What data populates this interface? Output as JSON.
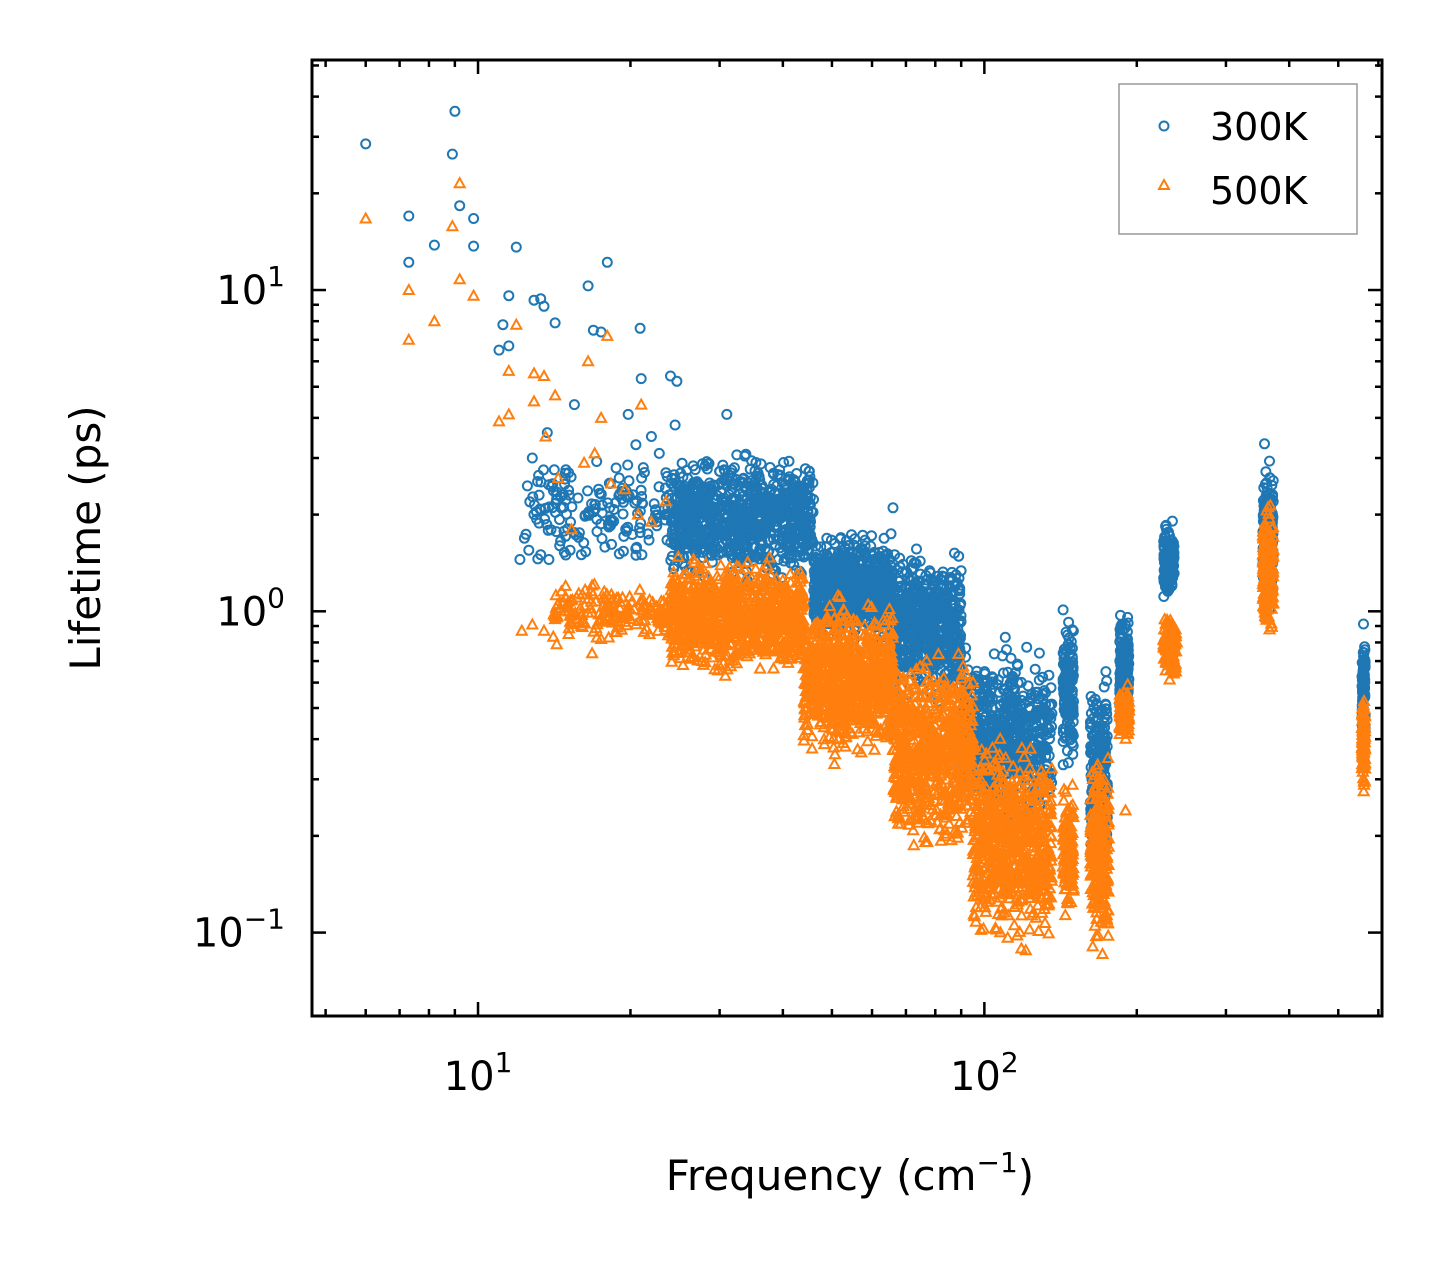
{
  "chart_data": {
    "type": "scatter",
    "title": "",
    "xlabel": "Frequency (cm",
    "xlabel_sup": "−1",
    "xlabel_close": ")",
    "ylabel": "Lifetime (ps)",
    "xscale": "log",
    "yscale": "log",
    "xlim": [
      4.7,
      610
    ],
    "ylim": [
      0.055,
      52
    ],
    "x_ticks": [
      {
        "value": 10,
        "base": "10",
        "exp": "1"
      },
      {
        "value": 100,
        "base": "10",
        "exp": "2"
      }
    ],
    "y_ticks": [
      {
        "value": 0.1,
        "base": "10",
        "exp": "−1"
      },
      {
        "value": 1,
        "base": "10",
        "exp": "0"
      },
      {
        "value": 10,
        "base": "10",
        "exp": "1"
      }
    ],
    "legend_position": "top-right",
    "series": [
      {
        "name": "300K",
        "marker": "circle",
        "color": "#1f77b4",
        "points": [
          [
            6.0,
            28.5
          ],
          [
            7.3,
            17.0
          ],
          [
            7.3,
            12.2
          ],
          [
            8.2,
            13.8
          ],
          [
            8.9,
            26.5
          ],
          [
            9.0,
            36.0
          ],
          [
            9.2,
            18.3
          ],
          [
            9.8,
            16.7
          ],
          [
            9.8,
            13.7
          ],
          [
            11.0,
            6.5
          ],
          [
            11.2,
            7.8
          ],
          [
            11.5,
            6.7
          ],
          [
            11.5,
            9.6
          ],
          [
            11.9,
            13.6
          ],
          [
            12.9,
            9.3
          ],
          [
            13.3,
            9.4
          ],
          [
            13.5,
            8.9
          ],
          [
            14.2,
            7.9
          ],
          [
            15.5,
            4.4
          ],
          [
            16.5,
            10.3
          ],
          [
            16.9,
            7.5
          ],
          [
            17.5,
            7.4
          ],
          [
            18.0,
            12.2
          ],
          [
            20.9,
            7.6
          ],
          [
            21.0,
            5.3
          ],
          [
            24.0,
            5.4
          ],
          [
            24.7,
            5.2
          ],
          [
            31.0,
            4.1
          ],
          [
            66.0,
            2.1
          ],
          [
            110.0,
            0.83
          ],
          [
            12.1,
            1.45
          ],
          [
            12.6,
            1.55
          ],
          [
            13.3,
            1.5
          ],
          [
            13.8,
            1.45
          ],
          [
            14.5,
            1.6
          ],
          [
            15.2,
            1.55
          ],
          [
            16.0,
            1.5
          ],
          [
            12.8,
            3.0
          ],
          [
            13.2,
            2.3
          ],
          [
            13.7,
            3.6
          ],
          [
            14.3,
            2.3
          ],
          [
            15.1,
            2.7
          ],
          [
            15.8,
            1.7
          ],
          [
            16.5,
            2.0
          ],
          [
            17.3,
            2.4
          ],
          [
            18.2,
            2.1
          ],
          [
            19.0,
            2.6
          ],
          [
            19.8,
            4.1
          ],
          [
            20.5,
            3.3
          ],
          [
            21.2,
            2.8
          ],
          [
            22.0,
            3.5
          ],
          [
            22.8,
            3.1
          ],
          [
            23.5,
            2.7
          ],
          [
            24.5,
            3.8
          ]
        ],
        "clusters": [
          {
            "x": [
              12.3,
              24.0
            ],
            "y_low": 1.3,
            "y_high": 3.2,
            "n": 160
          },
          {
            "x": [
              24.0,
              46.0
            ],
            "y_low": 1.15,
            "y_high": 3.3,
            "n": 900
          },
          {
            "x": [
              46.0,
              66.0
            ],
            "y_low": 0.75,
            "y_high": 1.9,
            "n": 700
          },
          {
            "x": [
              66.0,
              90.0
            ],
            "y_low": 0.48,
            "y_high": 1.7,
            "n": 600
          },
          {
            "x": [
              90.0,
              136.0
            ],
            "y_low": 0.2,
            "y_high": 0.85,
            "n": 600
          },
          {
            "x": [
              143.0,
              150.0
            ],
            "y_low": 0.3,
            "y_high": 1.1,
            "n": 140
          },
          {
            "x": [
              162.0,
              175.0
            ],
            "y_low": 0.13,
            "y_high": 0.72,
            "n": 240
          },
          {
            "x": [
              185.0,
              193.0
            ],
            "y_low": 0.38,
            "y_high": 1.06,
            "n": 150
          },
          {
            "x": [
              226.0,
              237.0
            ],
            "y_low": 1.0,
            "y_high": 2.05,
            "n": 120
          },
          {
            "x": [
              355.0,
              372.0
            ],
            "y_low": 0.9,
            "y_high": 3.4,
            "n": 240
          },
          {
            "x": [
              557.0,
              565.0
            ],
            "y_low": 0.33,
            "y_high": 0.93,
            "n": 90
          }
        ]
      },
      {
        "name": "500K",
        "marker": "triangle",
        "color": "#ff7f0e",
        "points": [
          [
            6.0,
            16.7
          ],
          [
            7.3,
            10.0
          ],
          [
            7.3,
            7.0
          ],
          [
            8.2,
            8.0
          ],
          [
            8.9,
            15.8
          ],
          [
            9.2,
            21.5
          ],
          [
            9.2,
            10.8
          ],
          [
            9.8,
            9.6
          ],
          [
            11.0,
            3.9
          ],
          [
            11.5,
            4.1
          ],
          [
            11.5,
            5.6
          ],
          [
            11.9,
            7.8
          ],
          [
            12.9,
            4.5
          ],
          [
            13.5,
            5.4
          ],
          [
            14.2,
            4.7
          ],
          [
            16.5,
            6.0
          ],
          [
            17.5,
            4.0
          ],
          [
            18.0,
            7.2
          ],
          [
            21.0,
            4.4
          ],
          [
            12.9,
            5.5
          ],
          [
            13.6,
            3.5
          ],
          [
            14.4,
            2.6
          ],
          [
            15.3,
            1.8
          ],
          [
            16.2,
            2.9
          ],
          [
            17.0,
            3.1
          ],
          [
            18.3,
            2.5
          ],
          [
            19.5,
            2.4
          ],
          [
            20.7,
            2.0
          ],
          [
            22.0,
            1.9
          ],
          [
            23.5,
            2.2
          ],
          [
            12.2,
            0.87
          ],
          [
            12.8,
            0.91
          ],
          [
            13.5,
            0.87
          ],
          [
            14.3,
            0.79
          ],
          [
            15.1,
            0.85
          ],
          [
            16.0,
            0.9
          ],
          [
            16.8,
            0.74
          ],
          [
            17.5,
            0.82
          ],
          [
            88.0,
            0.25
          ],
          [
            107.0,
            0.15
          ],
          [
            190.0,
            0.24
          ]
        ],
        "clusters": [
          {
            "x": [
              14.0,
              24.0
            ],
            "y_low": 0.78,
            "y_high": 1.3,
            "n": 170
          },
          {
            "x": [
              24.0,
              44.0
            ],
            "y_low": 0.6,
            "y_high": 1.55,
            "n": 900
          },
          {
            "x": [
              44.0,
              66.0
            ],
            "y_low": 0.32,
            "y_high": 1.2,
            "n": 800
          },
          {
            "x": [
              66.0,
              95.0
            ],
            "y_low": 0.16,
            "y_high": 0.85,
            "n": 700
          },
          {
            "x": [
              95.0,
              136.0
            ],
            "y_low": 0.08,
            "y_high": 0.45,
            "n": 650
          },
          {
            "x": [
              143.0,
              150.0
            ],
            "y_low": 0.1,
            "y_high": 0.32,
            "n": 120
          },
          {
            "x": [
              162.0,
              176.0
            ],
            "y_low": 0.076,
            "y_high": 0.42,
            "n": 240
          },
          {
            "x": [
              185.0,
              193.0
            ],
            "y_low": 0.38,
            "y_high": 0.62,
            "n": 120
          },
          {
            "x": [
              226.0,
              240.0
            ],
            "y_low": 0.58,
            "y_high": 1.05,
            "n": 110
          },
          {
            "x": [
              355.0,
              372.0
            ],
            "y_low": 0.75,
            "y_high": 2.3,
            "n": 240
          },
          {
            "x": [
              557.0,
              565.0
            ],
            "y_low": 0.26,
            "y_high": 0.6,
            "n": 90
          }
        ]
      }
    ]
  }
}
